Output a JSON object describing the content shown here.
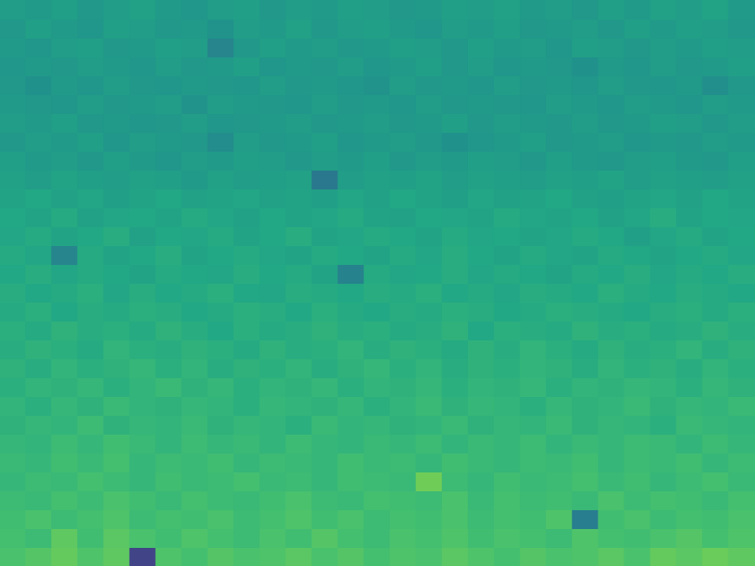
{
  "chart_data": {
    "type": "heatmap",
    "grid": false,
    "tick_labels": false,
    "zlim": [
      0,
      1
    ],
    "cells": [
      [
        0.55,
        0.54,
        0.56,
        0.53,
        0.55,
        0.57,
        0.54,
        0.52,
        0.55,
        0.56,
        0.53,
        0.55,
        0.54,
        0.56,
        0.55,
        0.53,
        0.54,
        0.56,
        0.55,
        0.57,
        0.54,
        0.55,
        0.53,
        0.56,
        0.54,
        0.57,
        0.55,
        0.58,
        0.54
      ],
      [
        0.53,
        0.56,
        0.54,
        0.52,
        0.56,
        0.55,
        0.53,
        0.54,
        0.51,
        0.55,
        0.54,
        0.57,
        0.53,
        0.55,
        0.56,
        0.54,
        0.52,
        0.55,
        0.54,
        0.56,
        0.53,
        0.54,
        0.55,
        0.53,
        0.56,
        0.54,
        0.56,
        0.55,
        0.53
      ],
      [
        0.54,
        0.52,
        0.55,
        0.56,
        0.53,
        0.54,
        0.56,
        0.55,
        0.45,
        0.53,
        0.56,
        0.54,
        0.55,
        0.53,
        0.54,
        0.56,
        0.55,
        0.53,
        0.56,
        0.54,
        0.55,
        0.52,
        0.56,
        0.55,
        0.53,
        0.55,
        0.54,
        0.56,
        0.55
      ],
      [
        0.52,
        0.54,
        0.53,
        0.55,
        0.54,
        0.52,
        0.55,
        0.53,
        0.54,
        0.56,
        0.52,
        0.54,
        0.53,
        0.55,
        0.52,
        0.54,
        0.56,
        0.53,
        0.55,
        0.52,
        0.54,
        0.53,
        0.5,
        0.54,
        0.52,
        0.55,
        0.53,
        0.54,
        0.56
      ],
      [
        0.53,
        0.5,
        0.54,
        0.52,
        0.55,
        0.53,
        0.52,
        0.54,
        0.53,
        0.52,
        0.55,
        0.53,
        0.54,
        0.52,
        0.51,
        0.55,
        0.53,
        0.54,
        0.52,
        0.55,
        0.53,
        0.54,
        0.52,
        0.55,
        0.53,
        0.52,
        0.54,
        0.49,
        0.53
      ],
      [
        0.54,
        0.53,
        0.52,
        0.55,
        0.53,
        0.54,
        0.55,
        0.51,
        0.55,
        0.54,
        0.53,
        0.52,
        0.55,
        0.53,
        0.54,
        0.52,
        0.55,
        0.53,
        0.54,
        0.53,
        0.52,
        0.55,
        0.54,
        0.52,
        0.55,
        0.54,
        0.52,
        0.55,
        0.54
      ],
      [
        0.55,
        0.54,
        0.56,
        0.53,
        0.54,
        0.52,
        0.53,
        0.55,
        0.52,
        0.53,
        0.54,
        0.55,
        0.53,
        0.54,
        0.55,
        0.53,
        0.54,
        0.56,
        0.53,
        0.55,
        0.54,
        0.53,
        0.55,
        0.53,
        0.54,
        0.56,
        0.55,
        0.53,
        0.55
      ],
      [
        0.53,
        0.55,
        0.54,
        0.56,
        0.52,
        0.55,
        0.54,
        0.53,
        0.48,
        0.55,
        0.53,
        0.54,
        0.56,
        0.52,
        0.54,
        0.55,
        0.53,
        0.5,
        0.52,
        0.54,
        0.56,
        0.53,
        0.54,
        0.55,
        0.52,
        0.54,
        0.53,
        0.55,
        0.54
      ],
      [
        0.56,
        0.54,
        0.55,
        0.53,
        0.56,
        0.54,
        0.52,
        0.55,
        0.54,
        0.56,
        0.55,
        0.53,
        0.55,
        0.54,
        0.56,
        0.53,
        0.55,
        0.54,
        0.56,
        0.55,
        0.53,
        0.56,
        0.54,
        0.53,
        0.55,
        0.56,
        0.54,
        0.53,
        0.56
      ],
      [
        0.57,
        0.55,
        0.58,
        0.56,
        0.55,
        0.57,
        0.56,
        0.54,
        0.57,
        0.55,
        0.56,
        0.57,
        0.4,
        0.55,
        0.57,
        0.56,
        0.58,
        0.55,
        0.57,
        0.56,
        0.55,
        0.57,
        0.56,
        0.58,
        0.55,
        0.57,
        0.56,
        0.55,
        0.57
      ],
      [
        0.58,
        0.6,
        0.57,
        0.59,
        0.56,
        0.58,
        0.6,
        0.57,
        0.58,
        0.59,
        0.57,
        0.58,
        0.56,
        0.59,
        0.57,
        0.6,
        0.58,
        0.56,
        0.59,
        0.57,
        0.58,
        0.6,
        0.57,
        0.56,
        0.58,
        0.59,
        0.57,
        0.6,
        0.58
      ],
      [
        0.6,
        0.58,
        0.61,
        0.57,
        0.59,
        0.6,
        0.58,
        0.61,
        0.59,
        0.57,
        0.6,
        0.58,
        0.59,
        0.61,
        0.58,
        0.57,
        0.6,
        0.59,
        0.58,
        0.61,
        0.59,
        0.58,
        0.6,
        0.57,
        0.59,
        0.62,
        0.58,
        0.6,
        0.59
      ],
      [
        0.59,
        0.61,
        0.58,
        0.6,
        0.62,
        0.57,
        0.6,
        0.59,
        0.61,
        0.58,
        0.6,
        0.62,
        0.58,
        0.59,
        0.61,
        0.6,
        0.58,
        0.61,
        0.59,
        0.6,
        0.58,
        0.59,
        0.61,
        0.6,
        0.56,
        0.59,
        0.61,
        0.58,
        0.6
      ],
      [
        0.61,
        0.59,
        0.45,
        0.61,
        0.58,
        0.6,
        0.62,
        0.58,
        0.6,
        0.61,
        0.59,
        0.58,
        0.61,
        0.6,
        0.58,
        0.61,
        0.59,
        0.62,
        0.6,
        0.58,
        0.61,
        0.59,
        0.58,
        0.61,
        0.6,
        0.58,
        0.6,
        0.61,
        0.59
      ],
      [
        0.6,
        0.62,
        0.59,
        0.61,
        0.6,
        0.58,
        0.61,
        0.6,
        0.59,
        0.62,
        0.6,
        0.61,
        0.58,
        0.44,
        0.61,
        0.59,
        0.6,
        0.62,
        0.59,
        0.61,
        0.6,
        0.58,
        0.61,
        0.6,
        0.62,
        0.59,
        0.61,
        0.6,
        0.62
      ],
      [
        0.62,
        0.6,
        0.61,
        0.63,
        0.59,
        0.62,
        0.6,
        0.61,
        0.63,
        0.6,
        0.59,
        0.62,
        0.61,
        0.6,
        0.62,
        0.61,
        0.63,
        0.6,
        0.61,
        0.59,
        0.62,
        0.61,
        0.6,
        0.63,
        0.61,
        0.6,
        0.62,
        0.61,
        0.6
      ],
      [
        0.61,
        0.63,
        0.6,
        0.62,
        0.61,
        0.63,
        0.62,
        0.6,
        0.61,
        0.63,
        0.62,
        0.6,
        0.63,
        0.61,
        0.6,
        0.62,
        0.61,
        0.63,
        0.62,
        0.6,
        0.61,
        0.63,
        0.62,
        0.61,
        0.6,
        0.62,
        0.63,
        0.61,
        0.63
      ],
      [
        0.63,
        0.61,
        0.64,
        0.62,
        0.63,
        0.61,
        0.64,
        0.62,
        0.6,
        0.63,
        0.61,
        0.62,
        0.64,
        0.62,
        0.63,
        0.61,
        0.62,
        0.64,
        0.6,
        0.63,
        0.62,
        0.61,
        0.64,
        0.62,
        0.63,
        0.61,
        0.62,
        0.64,
        0.62
      ],
      [
        0.62,
        0.64,
        0.63,
        0.61,
        0.65,
        0.63,
        0.62,
        0.64,
        0.63,
        0.61,
        0.64,
        0.62,
        0.63,
        0.65,
        0.62,
        0.64,
        0.63,
        0.61,
        0.64,
        0.62,
        0.65,
        0.63,
        0.61,
        0.64,
        0.62,
        0.63,
        0.65,
        0.62,
        0.64
      ],
      [
        0.64,
        0.62,
        0.65,
        0.63,
        0.64,
        0.66,
        0.63,
        0.65,
        0.62,
        0.64,
        0.63,
        0.65,
        0.62,
        0.64,
        0.66,
        0.63,
        0.65,
        0.62,
        0.64,
        0.63,
        0.65,
        0.64,
        0.62,
        0.65,
        0.63,
        0.64,
        0.62,
        0.65,
        0.63
      ],
      [
        0.63,
        0.65,
        0.64,
        0.66,
        0.63,
        0.65,
        0.67,
        0.64,
        0.66,
        0.63,
        0.65,
        0.64,
        0.66,
        0.63,
        0.65,
        0.64,
        0.66,
        0.63,
        0.65,
        0.64,
        0.66,
        0.63,
        0.65,
        0.64,
        0.66,
        0.65,
        0.63,
        0.66,
        0.64
      ],
      [
        0.65,
        0.63,
        0.66,
        0.64,
        0.67,
        0.65,
        0.64,
        0.66,
        0.65,
        0.63,
        0.66,
        0.65,
        0.64,
        0.66,
        0.63,
        0.65,
        0.67,
        0.64,
        0.66,
        0.65,
        0.63,
        0.66,
        0.64,
        0.65,
        0.67,
        0.64,
        0.66,
        0.65,
        0.67
      ],
      [
        0.64,
        0.66,
        0.65,
        0.68,
        0.64,
        0.66,
        0.65,
        0.67,
        0.64,
        0.66,
        0.65,
        0.63,
        0.67,
        0.65,
        0.66,
        0.64,
        0.65,
        0.67,
        0.64,
        0.66,
        0.65,
        0.67,
        0.64,
        0.66,
        0.65,
        0.63,
        0.67,
        0.66,
        0.65
      ],
      [
        0.66,
        0.65,
        0.68,
        0.66,
        0.69,
        0.67,
        0.65,
        0.68,
        0.66,
        0.67,
        0.65,
        0.68,
        0.66,
        0.65,
        0.67,
        0.66,
        0.68,
        0.65,
        0.67,
        0.66,
        0.68,
        0.65,
        0.67,
        0.66,
        0.68,
        0.67,
        0.65,
        0.68,
        0.66
      ],
      [
        0.67,
        0.66,
        0.69,
        0.67,
        0.7,
        0.66,
        0.68,
        0.67,
        0.69,
        0.66,
        0.68,
        0.67,
        0.66,
        0.69,
        0.67,
        0.68,
        0.66,
        0.69,
        0.67,
        0.66,
        0.68,
        0.67,
        0.69,
        0.66,
        0.68,
        0.67,
        0.69,
        0.66,
        0.68
      ],
      [
        0.66,
        0.68,
        0.67,
        0.7,
        0.68,
        0.66,
        0.69,
        0.67,
        0.68,
        0.7,
        0.67,
        0.68,
        0.66,
        0.69,
        0.68,
        0.67,
        0.78,
        0.68,
        0.66,
        0.69,
        0.67,
        0.68,
        0.7,
        0.67,
        0.69,
        0.66,
        0.68,
        0.7,
        0.67
      ],
      [
        0.68,
        0.67,
        0.7,
        0.68,
        0.71,
        0.69,
        0.67,
        0.7,
        0.68,
        0.67,
        0.69,
        0.71,
        0.68,
        0.67,
        0.7,
        0.69,
        0.68,
        0.71,
        0.67,
        0.7,
        0.68,
        0.69,
        0.67,
        0.71,
        0.68,
        0.7,
        0.69,
        0.67,
        0.7
      ],
      [
        0.69,
        0.71,
        0.68,
        0.7,
        0.72,
        0.68,
        0.7,
        0.69,
        0.71,
        0.68,
        0.7,
        0.72,
        0.69,
        0.71,
        0.68,
        0.7,
        0.69,
        0.71,
        0.68,
        0.7,
        0.69,
        0.72,
        0.42,
        0.69,
        0.71,
        0.68,
        0.7,
        0.69,
        0.71
      ],
      [
        0.7,
        0.68,
        0.75,
        0.69,
        0.74,
        0.71,
        0.69,
        0.72,
        0.7,
        0.68,
        0.71,
        0.69,
        0.73,
        0.7,
        0.68,
        0.71,
        0.7,
        0.72,
        0.69,
        0.71,
        0.7,
        0.68,
        0.72,
        0.7,
        0.69,
        0.71,
        0.73,
        0.7,
        0.72
      ],
      [
        0.71,
        0.73,
        0.76,
        0.72,
        0.75,
        0.2,
        0.72,
        0.7,
        0.73,
        0.71,
        0.72,
        0.74,
        0.71,
        0.73,
        0.7,
        0.72,
        0.71,
        0.74,
        0.72,
        0.7,
        0.73,
        0.71,
        0.72,
        0.74,
        0.71,
        0.76,
        0.74,
        0.77,
        0.75
      ]
    ]
  }
}
